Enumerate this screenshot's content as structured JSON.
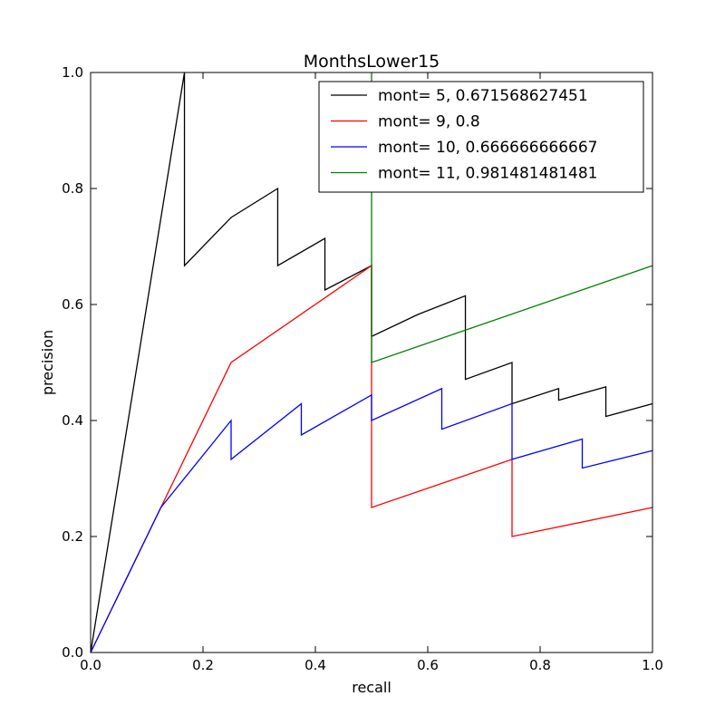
{
  "chart_data": {
    "type": "line",
    "title": "MonthsLower15",
    "xlabel": "recall",
    "ylabel": "precision",
    "xlim": [
      0.0,
      1.0
    ],
    "ylim": [
      0.0,
      1.0
    ],
    "xticks": [
      "0.0",
      "0.2",
      "0.4",
      "0.6",
      "0.8",
      "1.0"
    ],
    "yticks": [
      "0.0",
      "0.2",
      "0.4",
      "0.6",
      "0.8",
      "1.0"
    ],
    "grid": false,
    "legend_position": "top-right",
    "series": [
      {
        "name": "mont= 5, 0.671568627451",
        "color": "#000000",
        "points": [
          [
            0.0,
            0.0
          ],
          [
            0.167,
            1.0
          ],
          [
            0.167,
            0.667
          ],
          [
            0.25,
            0.75
          ],
          [
            0.333,
            0.8
          ],
          [
            0.333,
            0.667
          ],
          [
            0.417,
            0.714
          ],
          [
            0.417,
            0.625
          ],
          [
            0.5,
            0.667
          ],
          [
            0.5,
            0.545
          ],
          [
            0.583,
            0.583
          ],
          [
            0.667,
            0.615
          ],
          [
            0.667,
            0.471
          ],
          [
            0.75,
            0.5
          ],
          [
            0.75,
            0.429
          ],
          [
            0.833,
            0.455
          ],
          [
            0.833,
            0.435
          ],
          [
            0.917,
            0.458
          ],
          [
            0.917,
            0.407
          ],
          [
            1.0,
            0.429
          ]
        ]
      },
      {
        "name": "mont= 9, 0.8",
        "color": "#ff0000",
        "points": [
          [
            0.0,
            0.0
          ],
          [
            0.125,
            0.25
          ],
          [
            0.25,
            0.5
          ],
          [
            0.5,
            0.667
          ],
          [
            0.5,
            0.25
          ],
          [
            0.75,
            0.333
          ],
          [
            0.75,
            0.2
          ],
          [
            1.0,
            0.25
          ]
        ]
      },
      {
        "name": "mont= 10, 0.666666666667",
        "color": "#0000ff",
        "points": [
          [
            0.0,
            0.0
          ],
          [
            0.125,
            0.25
          ],
          [
            0.25,
            0.4
          ],
          [
            0.25,
            0.333
          ],
          [
            0.375,
            0.429
          ],
          [
            0.375,
            0.375
          ],
          [
            0.5,
            0.444
          ],
          [
            0.5,
            0.4
          ],
          [
            0.625,
            0.455
          ],
          [
            0.625,
            0.385
          ],
          [
            0.75,
            0.429
          ],
          [
            0.75,
            0.333
          ],
          [
            0.875,
            0.368
          ],
          [
            0.875,
            0.318
          ],
          [
            1.0,
            0.348
          ]
        ]
      },
      {
        "name": "mont= 11, 0.981481481481",
        "color": "#008000",
        "points": [
          [
            0.5,
            1.0
          ],
          [
            0.5,
            0.5
          ],
          [
            1.0,
            0.667
          ]
        ]
      }
    ]
  }
}
